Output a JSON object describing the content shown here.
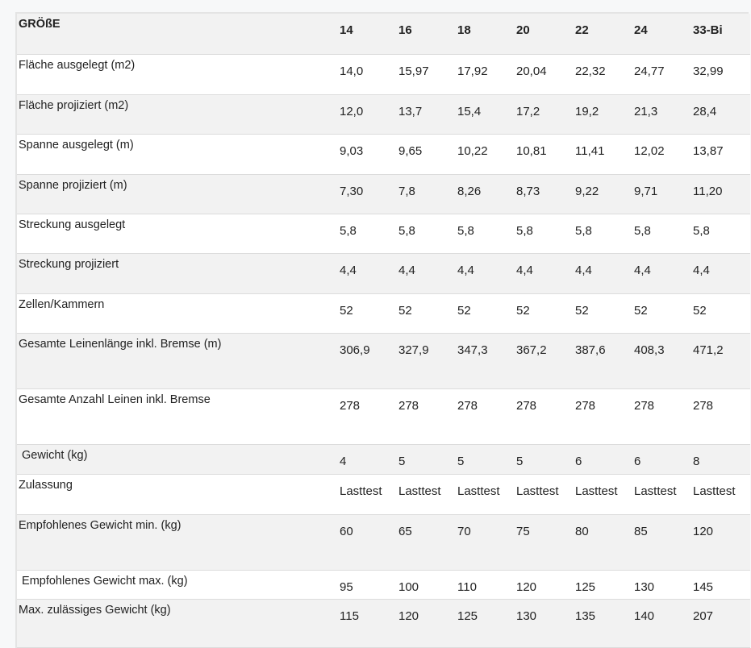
{
  "table": {
    "header": {
      "label": "GRÖßE",
      "values": [
        "14",
        "16",
        "18",
        "20",
        "22",
        "24",
        "33-Bi"
      ]
    },
    "rows": [
      {
        "label": "Fläche ausgelegt (m2)",
        "values": [
          "14,0",
          "15,97",
          "17,92",
          "20,04",
          "22,32",
          "24,77",
          "32,99"
        ]
      },
      {
        "label": "Fläche projiziert (m2)",
        "values": [
          "12,0",
          "13,7",
          "15,4",
          "17,2",
          "19,2",
          "21,3",
          "28,4"
        ]
      },
      {
        "label": "Spanne ausgelegt (m)",
        "values": [
          "9,03",
          "9,65",
          "10,22",
          "10,81",
          "11,41",
          "12,02",
          "13,87"
        ]
      },
      {
        "label": "Spanne projiziert (m)",
        "values": [
          "7,30",
          "7,8",
          "8,26",
          "8,73",
          "9,22",
          "9,71",
          "11,20"
        ]
      },
      {
        "label": "Streckung ausgelegt",
        "values": [
          "5,8",
          "5,8",
          "5,8",
          "5,8",
          "5,8",
          "5,8",
          "5,8"
        ]
      },
      {
        "label": "Streckung projiziert",
        "values": [
          "4,4",
          "4,4",
          "4,4",
          "4,4",
          "4,4",
          "4,4",
          "4,4"
        ]
      },
      {
        "label": "Zellen/Kammern",
        "values": [
          "52",
          "52",
          "52",
          "52",
          "52",
          "52",
          "52"
        ]
      },
      {
        "label": "Gesamte Leinenlänge inkl. Bremse (m)",
        "values": [
          "306,9",
          "327,9",
          "347,3",
          "367,2",
          "387,6",
          "408,3",
          "471,2"
        ]
      },
      {
        "label": "Gesamte Anzahl Leinen inkl. Bremse",
        "values": [
          "278",
          "278",
          "278",
          "278",
          "278",
          "278",
          "278"
        ]
      },
      {
        "label": " Gewicht (kg)",
        "values": [
          "4",
          "5",
          "5",
          "5",
          "6",
          "6",
          "8"
        ]
      },
      {
        "label": "Zulassung",
        "values": [
          "Lasttest",
          "Lasttest",
          "Lasttest",
          "Lasttest",
          "Lasttest",
          "Lasttest",
          "Lasttest"
        ]
      },
      {
        "label": "Empfohlenes Gewicht min. (kg)",
        "values": [
          "60",
          "65",
          "70",
          "75",
          "80",
          "85",
          "120"
        ]
      },
      {
        "label": " Empfohlenes Gewicht max. (kg)",
        "values": [
          "95",
          "100",
          "110",
          "120",
          "125",
          "130",
          "145"
        ]
      },
      {
        "label": "Max. zulässiges Gewicht (kg)",
        "values": [
          "115",
          "120",
          "125",
          "130",
          "135",
          "140",
          "207"
        ]
      }
    ]
  }
}
